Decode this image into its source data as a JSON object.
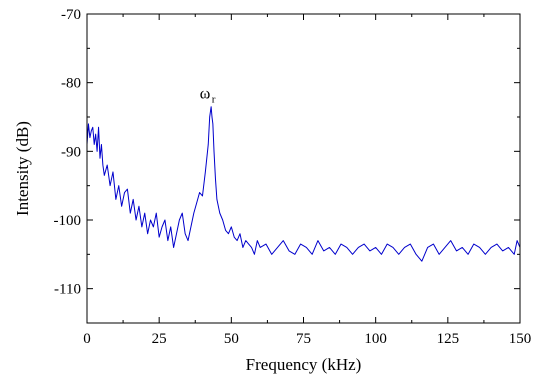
{
  "chart_data": {
    "type": "line",
    "xlabel": "Frequency (kHz)",
    "ylabel": "Intensity (dB)",
    "xlim": [
      0,
      150
    ],
    "ylim": [
      -115,
      -70
    ],
    "xticks": [
      0,
      25,
      50,
      75,
      100,
      125,
      150
    ],
    "yticks": [
      -70,
      -80,
      -90,
      -100,
      -110
    ],
    "grid": false,
    "annotation": {
      "text": "ω",
      "subscript": "r",
      "x": 43.2,
      "y": -83.5
    },
    "series": [
      {
        "color": "#0000cc",
        "x": [
          0,
          0.5,
          1,
          1.5,
          2,
          2.5,
          3,
          3.5,
          4,
          4.5,
          5,
          5.5,
          6,
          7,
          8,
          9,
          10,
          11,
          12,
          13,
          14,
          15,
          16,
          17,
          18,
          19,
          20,
          21,
          22,
          23,
          24,
          25,
          26,
          27,
          28,
          29,
          30,
          31,
          32,
          33,
          34,
          35,
          36,
          37,
          38,
          39,
          40,
          41,
          42,
          42.5,
          43,
          43.3,
          43.6,
          44,
          44.5,
          45,
          46,
          47,
          48,
          49,
          50,
          51,
          52,
          53,
          54,
          55,
          56,
          57,
          58,
          59,
          60,
          62,
          64,
          66,
          68,
          70,
          72,
          74,
          76,
          78,
          80,
          82,
          84,
          86,
          88,
          90,
          92,
          94,
          96,
          98,
          100,
          102,
          104,
          106,
          108,
          110,
          112,
          114,
          116,
          118,
          120,
          122,
          124,
          126,
          128,
          130,
          132,
          134,
          136,
          138,
          140,
          142,
          144,
          146,
          148,
          149,
          150
        ],
        "y": [
          -89,
          -86,
          -88,
          -87,
          -86.5,
          -89,
          -87.5,
          -90,
          -86.5,
          -91,
          -89,
          -92,
          -93.5,
          -92,
          -95,
          -93,
          -97,
          -95,
          -98,
          -96,
          -95.5,
          -99,
          -97,
          -100,
          -98,
          -101,
          -99,
          -102,
          -100,
          -101,
          -99,
          -102.5,
          -101,
          -100,
          -103,
          -101,
          -104,
          -102,
          -100,
          -99,
          -102,
          -103,
          -101,
          -99,
          -97.5,
          -96,
          -96.5,
          -93,
          -89,
          -85,
          -83.5,
          -85,
          -86,
          -90,
          -94,
          -97,
          -99,
          -100,
          -101.5,
          -102,
          -101,
          -102.5,
          -103,
          -102,
          -104,
          -103,
          -103.5,
          -104,
          -105,
          -103,
          -104,
          -103.5,
          -105,
          -104,
          -103,
          -104.5,
          -105,
          -103.5,
          -104,
          -105,
          -103,
          -104.5,
          -104,
          -105,
          -103.5,
          -104,
          -105,
          -104,
          -103.5,
          -104.5,
          -104,
          -105,
          -103.5,
          -104,
          -105,
          -104,
          -103.5,
          -105,
          -106,
          -104,
          -103.5,
          -105,
          -104,
          -103,
          -104.5,
          -104,
          -105,
          -103.5,
          -104,
          -105,
          -104,
          -103.5,
          -104.5,
          -104,
          -105,
          -103,
          -104
        ]
      }
    ]
  }
}
